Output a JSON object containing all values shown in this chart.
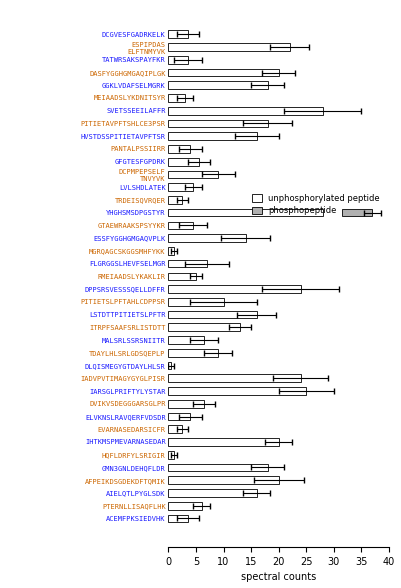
{
  "chart_data": [
    {
      "label": "DCGVESFGADRKELK",
      "uv": 3.5,
      "ue": 2.0,
      "ps": 0,
      "pv": 0,
      "pe": 0,
      "lc": "blue"
    },
    {
      "label": "ESPIPDAS\nELFTNMYVK",
      "uv": 22.0,
      "ue": 3.5,
      "ps": 0,
      "pv": 0,
      "pe": 0,
      "lc": "orange"
    },
    {
      "label": "TATWRSAKSPAYFKR",
      "uv": 3.5,
      "ue": 2.5,
      "ps": 0,
      "pv": 0,
      "pe": 0,
      "lc": "blue"
    },
    {
      "label": "DASFYGGHGMGAQIPLGK",
      "uv": 20.0,
      "ue": 3.0,
      "ps": 0,
      "pv": 0,
      "pe": 0,
      "lc": "orange"
    },
    {
      "label": "GGKLVDAFSELMGRK",
      "uv": 18.0,
      "ue": 3.0,
      "ps": 0,
      "pv": 0,
      "pe": 0,
      "lc": "blue"
    },
    {
      "label": "MEIAADSLYKDNITSYR",
      "uv": 3.0,
      "ue": 1.5,
      "ps": 0,
      "pv": 0,
      "pe": 0,
      "lc": "orange"
    },
    {
      "label": "SVETSSEEILAFFR",
      "uv": 28.0,
      "ue": 7.0,
      "ps": 0,
      "pv": 0,
      "pe": 0,
      "lc": "blue"
    },
    {
      "label": "PITIETAVPFTSHLCE3PSR",
      "uv": 18.0,
      "ue": 4.5,
      "ps": 0,
      "pv": 0,
      "pe": 0,
      "lc": "orange"
    },
    {
      "label": "HVSTDSSPITIETAVPFTSR",
      "uv": 16.0,
      "ue": 4.0,
      "ps": 0,
      "pv": 0,
      "pe": 0,
      "lc": "blue"
    },
    {
      "label": "PANTALPSSIIRR",
      "uv": 4.0,
      "ue": 2.0,
      "ps": 0,
      "pv": 0,
      "pe": 0,
      "lc": "orange"
    },
    {
      "label": "GFGTESFGPDRK",
      "uv": 5.5,
      "ue": 2.0,
      "ps": 0,
      "pv": 0,
      "pe": 0,
      "lc": "blue"
    },
    {
      "label": "DCPMPEPSELF\nTNVYVK",
      "uv": 9.0,
      "ue": 3.0,
      "ps": 0,
      "pv": 0,
      "pe": 0,
      "lc": "orange"
    },
    {
      "label": "LVLSHDLATEK",
      "uv": 4.5,
      "ue": 1.5,
      "ps": 0,
      "pv": 0,
      "pe": 0,
      "lc": "blue"
    },
    {
      "label": "TRDEISQVRQER",
      "uv": 2.5,
      "ue": 1.0,
      "ps": 0,
      "pv": 0,
      "pe": 0,
      "lc": "orange"
    },
    {
      "label": "YHGHSMSDPGSTYR",
      "uv": 28.0,
      "ue": 0,
      "ps": 31.5,
      "pv": 5.5,
      "pe": 1.5,
      "lc": "blue"
    },
    {
      "label": "GTAEWRAAKSPSYYKR",
      "uv": 4.5,
      "ue": 2.5,
      "ps": 0,
      "pv": 0,
      "pe": 0,
      "lc": "orange"
    },
    {
      "label": "ESSFYGGHGMGAQVPLK",
      "uv": 14.0,
      "ue": 4.5,
      "ps": 0,
      "pv": 0,
      "pe": 0,
      "lc": "blue"
    },
    {
      "label": "MGRQAGCSKGGSMHFYKK",
      "uv": 1.0,
      "ue": 0.5,
      "ps": 0,
      "pv": 0,
      "pe": 0,
      "lc": "orange"
    },
    {
      "label": "FLGRGGSLHEVFSELMGR",
      "uv": 7.0,
      "ue": 4.0,
      "ps": 0,
      "pv": 0,
      "pe": 0,
      "lc": "blue"
    },
    {
      "label": "RMEIAADSLYKAKLIR",
      "uv": 5.0,
      "ue": 1.0,
      "ps": 0,
      "pv": 0,
      "pe": 0,
      "lc": "orange"
    },
    {
      "label": "DPPSRSVESSSQELLDFFR",
      "uv": 24.0,
      "ue": 7.0,
      "ps": 0,
      "pv": 0,
      "pe": 0,
      "lc": "blue"
    },
    {
      "label": "PITIETSLPFTAHLCDPPSR",
      "uv": 10.0,
      "ue": 6.0,
      "ps": 0,
      "pv": 0,
      "pe": 0,
      "lc": "orange"
    },
    {
      "label": "LSTDTTPITIETSLPFTR",
      "uv": 16.0,
      "ue": 3.5,
      "ps": 0,
      "pv": 0,
      "pe": 0,
      "lc": "blue"
    },
    {
      "label": "ITRPFSAAFSRLISTDTT",
      "uv": 13.0,
      "ue": 2.0,
      "ps": 0,
      "pv": 0,
      "pe": 0,
      "lc": "orange"
    },
    {
      "label": "MALSRLSSRSNIITR",
      "uv": 6.5,
      "ue": 2.5,
      "ps": 0,
      "pv": 0,
      "pe": 0,
      "lc": "blue"
    },
    {
      "label": "TDAYLHLSRLGDSQEPLP",
      "uv": 9.0,
      "ue": 2.5,
      "ps": 0,
      "pv": 0,
      "pe": 0,
      "lc": "orange"
    },
    {
      "label": "DLQISMEGYGTDAYLHLSR",
      "uv": 0.5,
      "ue": 0.5,
      "ps": 0,
      "pv": 0,
      "pe": 0,
      "lc": "blue"
    },
    {
      "label": "IADVPVTIMAGYGYGLPISR",
      "uv": 24.0,
      "ue": 5.0,
      "ps": 0,
      "pv": 0,
      "pe": 0,
      "lc": "orange"
    },
    {
      "label": "IARSGLPRIFTYLYSTAR",
      "uv": 25.0,
      "ue": 5.0,
      "ps": 0,
      "pv": 0,
      "pe": 0,
      "lc": "blue"
    },
    {
      "label": "DVIKVSDEGGGARSGLPR",
      "uv": 6.5,
      "ue": 2.0,
      "ps": 0,
      "pv": 0,
      "pe": 0,
      "lc": "orange"
    },
    {
      "label": "ELVKNSLRAVQERFVDSDR",
      "uv": 4.0,
      "ue": 2.0,
      "ps": 0,
      "pv": 0,
      "pe": 0,
      "lc": "blue"
    },
    {
      "label": "EVARNASEDARSICFR",
      "uv": 2.5,
      "ue": 1.0,
      "ps": 0,
      "pv": 0,
      "pe": 0,
      "lc": "orange"
    },
    {
      "label": "IHTKMSPMEVARNASEDAR",
      "uv": 20.0,
      "ue": 2.5,
      "ps": 0,
      "pv": 0,
      "pe": 0,
      "lc": "blue"
    },
    {
      "label": "HQFLDRFYLSRIGIR",
      "uv": 1.0,
      "ue": 0.5,
      "ps": 0,
      "pv": 0,
      "pe": 0,
      "lc": "orange"
    },
    {
      "label": "GMN3GNLDEHQFLDR",
      "uv": 18.0,
      "ue": 3.0,
      "ps": 0,
      "pv": 0,
      "pe": 0,
      "lc": "blue"
    },
    {
      "label": "AFPEIKDSGDEKDFTQMIK",
      "uv": 20.0,
      "ue": 4.5,
      "ps": 0,
      "pv": 0,
      "pe": 0,
      "lc": "orange"
    },
    {
      "label": "AIELQTLPYGLSDK",
      "uv": 16.0,
      "ue": 2.5,
      "ps": 0,
      "pv": 0,
      "pe": 0,
      "lc": "blue"
    },
    {
      "label": "PTERNLLISAQFLHK",
      "uv": 6.0,
      "ue": 1.5,
      "ps": 0,
      "pv": 0,
      "pe": 0,
      "lc": "orange"
    },
    {
      "label": "ACEMFPKSIEDVHK",
      "uv": 3.5,
      "ue": 2.0,
      "ps": 0,
      "pv": 0,
      "pe": 0,
      "lc": "blue"
    }
  ],
  "unphospho_color": "#ffffff",
  "phospho_color": "#b0b0b0",
  "bar_edge_color": "#000000",
  "blue_color": "#1a1aff",
  "orange_color": "#cc6600",
  "xlabel": "spectral counts",
  "xlim": [
    0,
    40
  ],
  "bar_height": 0.6,
  "figsize": [
    4.01,
    5.88
  ],
  "dpi": 100
}
